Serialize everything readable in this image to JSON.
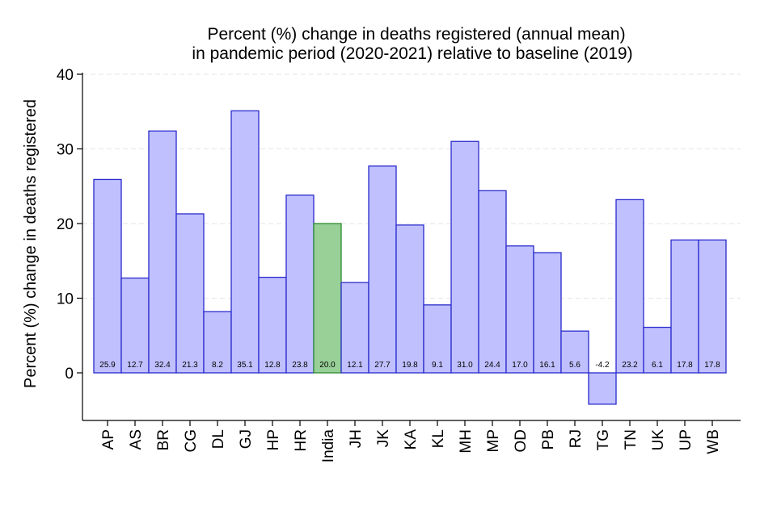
{
  "chart_data": {
    "type": "bar",
    "title": "Percent (%) change in deaths registered (annual mean)",
    "subtitle": "in pandemic period (2020-2021) relative to baseline (2019)",
    "xlabel": "",
    "ylabel": "Percent (%) change in deaths registered",
    "ylim": [
      -5,
      40
    ],
    "yticks": [
      0,
      10,
      20,
      30,
      40
    ],
    "grid": true,
    "categories": [
      "AP",
      "AS",
      "BR",
      "CG",
      "DL",
      "GJ",
      "HP",
      "HR",
      "India",
      "JH",
      "JK",
      "KA",
      "KL",
      "MH",
      "MP",
      "OD",
      "PB",
      "RJ",
      "TG",
      "TN",
      "UK",
      "UP",
      "WB"
    ],
    "values": [
      25.9,
      12.7,
      32.4,
      21.3,
      8.2,
      35.1,
      12.8,
      23.8,
      20.0,
      12.1,
      27.7,
      19.8,
      9.1,
      31.0,
      24.4,
      17.0,
      16.1,
      5.6,
      -4.2,
      23.2,
      6.1,
      17.8,
      17.8
    ],
    "data_labels": [
      "25.9",
      "12.7",
      "32.4",
      "21.3",
      "8.2",
      "35.1",
      "12.8",
      "23.8",
      "20.0",
      "12.1",
      "27.7",
      "19.8",
      "9.1",
      "31.0",
      "24.4",
      "17.0",
      "16.1",
      "5.6",
      "-4.2",
      "23.2",
      "6.1",
      "17.8",
      "17.8"
    ],
    "highlight": "India",
    "colors": {
      "bar_fill": "#c0c0ff",
      "bar_stroke": "#2a2acc",
      "highlight_fill": "#98d098",
      "highlight_stroke": "#2e8b2e"
    }
  }
}
